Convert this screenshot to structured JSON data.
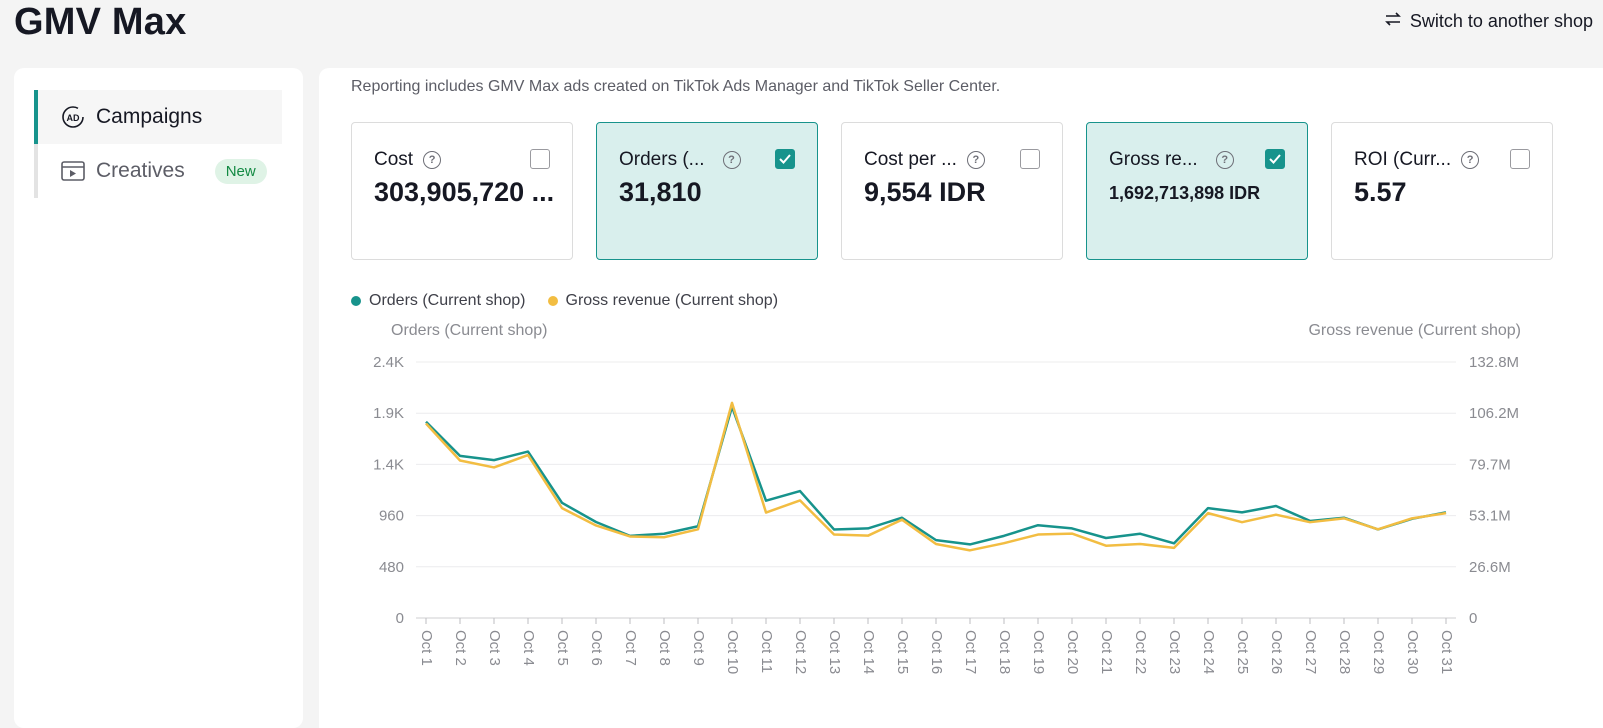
{
  "header": {
    "title": "GMV Max",
    "switch_label": "Switch to another shop"
  },
  "sidebar": {
    "items": [
      {
        "label": "Campaigns",
        "icon": "ad-icon",
        "active": true
      },
      {
        "label": "Creatives",
        "icon": "video-icon",
        "active": false,
        "badge": "New"
      }
    ]
  },
  "notice": "Reporting includes GMV Max ads created on TikTok Ads Manager and TikTok Seller Center.",
  "metrics": [
    {
      "label": "Cost",
      "value": "303,905,720 ...",
      "checked": false
    },
    {
      "label": "Orders (...",
      "value": "31,810",
      "checked": true
    },
    {
      "label": "Cost per ...",
      "value": "9,554 IDR",
      "checked": false
    },
    {
      "label": "Gross re...",
      "value": "1,692,713,898 IDR",
      "checked": true
    },
    {
      "label": "ROI (Curr...",
      "value": "5.57",
      "checked": false
    }
  ],
  "chart_data": {
    "type": "line",
    "legend": [
      "Orders (Current shop)",
      "Gross revenue (Current shop)"
    ],
    "y_left_label": "Orders (Current shop)",
    "y_right_label": "Gross revenue (Current shop)",
    "y_left_ticks": [
      "2.4K",
      "1.9K",
      "1.4K",
      "960",
      "480",
      "0"
    ],
    "y_right_ticks": [
      "132.8M",
      "106.2M",
      "79.7M",
      "53.1M",
      "26.6M",
      "0"
    ],
    "ylim_left": [
      0,
      2400
    ],
    "ylim_right": [
      0,
      132.8
    ],
    "categories": [
      "Oct 1",
      "Oct 2",
      "Oct 3",
      "Oct 4",
      "Oct 5",
      "Oct 6",
      "Oct 7",
      "Oct 8",
      "Oct 9",
      "Oct 10",
      "Oct 11",
      "Oct 12",
      "Oct 13",
      "Oct 14",
      "Oct 15",
      "Oct 16",
      "Oct 17",
      "Oct 18",
      "Oct 19",
      "Oct 20",
      "Oct 21",
      "Oct 22",
      "Oct 23",
      "Oct 24",
      "Oct 25",
      "Oct 26",
      "Oct 27",
      "Oct 28",
      "Oct 29",
      "Oct 30",
      "Oct 31"
    ],
    "series": [
      {
        "name": "Orders (Current shop)",
        "color": "#17938c",
        "values": [
          1840,
          1520,
          1480,
          1560,
          1080,
          900,
          770,
          790,
          860,
          1980,
          1100,
          1190,
          830,
          840,
          940,
          730,
          690,
          770,
          870,
          840,
          750,
          790,
          700,
          1030,
          990,
          1050,
          910,
          940,
          830,
          930,
          990
        ]
      },
      {
        "name": "Gross revenue (Current shop)",
        "color": "#f2bd42",
        "values": [
          100.9,
          81.7,
          78.1,
          84.5,
          57.0,
          48.0,
          42.3,
          41.9,
          46.0,
          111.6,
          54.7,
          61.0,
          43.3,
          42.7,
          51.0,
          38.4,
          35.1,
          38.8,
          43.3,
          43.8,
          37.5,
          38.4,
          36.4,
          54.4,
          49.7,
          53.6,
          49.7,
          51.7,
          46.0,
          51.7,
          54.4
        ]
      }
    ]
  }
}
